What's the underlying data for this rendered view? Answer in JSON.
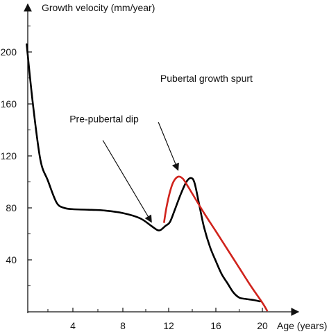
{
  "chart_data": {
    "type": "line",
    "ylabel": "Growth velocity (mm/year)",
    "xlabel": "Age (years)",
    "xlim": [
      -0.3,
      21.0
    ],
    "ylim": [
      0,
      225
    ],
    "x_ticks": [
      4,
      8,
      12,
      16,
      20
    ],
    "x_tick_labels": [
      "4",
      "8",
      "12",
      "16",
      "20"
    ],
    "y_ticks": [
      40,
      80,
      120,
      160,
      200
    ],
    "y_tick_labels": [
      "40",
      "80",
      "120",
      "160",
      "200"
    ],
    "grid": false,
    "legend": "none",
    "series": [
      {
        "color": "#000000",
        "points": [
          [
            0.3,
            206
          ],
          [
            0.8,
            160
          ],
          [
            1.4,
            117
          ],
          [
            2.0,
            101
          ],
          [
            2.7,
            84
          ],
          [
            3.3,
            80
          ],
          [
            4.0,
            79
          ],
          [
            5.5,
            78.5
          ],
          [
            6.5,
            78
          ],
          [
            8.0,
            76
          ],
          [
            9.5,
            72
          ],
          [
            10.5,
            66
          ],
          [
            11.0,
            63
          ],
          [
            11.3,
            63
          ],
          [
            11.7,
            66
          ],
          [
            12.1,
            69
          ],
          [
            12.5,
            78
          ],
          [
            13.0,
            90
          ],
          [
            13.5,
            100
          ],
          [
            13.9,
            103
          ],
          [
            14.2,
            99
          ],
          [
            14.6,
            82
          ],
          [
            15.0,
            65
          ],
          [
            15.5,
            50
          ],
          [
            16.0,
            39
          ],
          [
            16.5,
            29
          ],
          [
            17.0,
            22
          ],
          [
            17.5,
            15
          ],
          [
            18.0,
            11
          ],
          [
            18.5,
            10
          ],
          [
            19.3,
            9
          ],
          [
            19.8,
            8
          ]
        ]
      },
      {
        "color": "#d0231c",
        "points": [
          [
            11.6,
            69
          ],
          [
            11.8,
            80
          ],
          [
            12.1,
            92
          ],
          [
            12.4,
            100
          ],
          [
            12.8,
            104
          ],
          [
            13.2,
            102.5
          ],
          [
            13.6,
            97
          ],
          [
            14.0,
            91
          ],
          [
            15.0,
            76
          ],
          [
            16.0,
            62
          ],
          [
            17.0,
            48
          ],
          [
            18.0,
            34
          ],
          [
            19.0,
            20
          ],
          [
            20.0,
            7
          ],
          [
            20.4,
            1
          ]
        ]
      }
    ],
    "annotations": [
      {
        "text": "Pubertal growth spurt",
        "text_at": [
          15.2,
          177
        ],
        "arrow_from": [
          11.1,
          146
        ],
        "arrow_to": [
          12.8,
          109
        ]
      },
      {
        "text": "Pre-pubertal dip",
        "text_at": [
          6.5,
          146
        ],
        "arrow_from": [
          6.4,
          132
        ],
        "arrow_to": [
          10.5,
          69
        ]
      }
    ]
  }
}
